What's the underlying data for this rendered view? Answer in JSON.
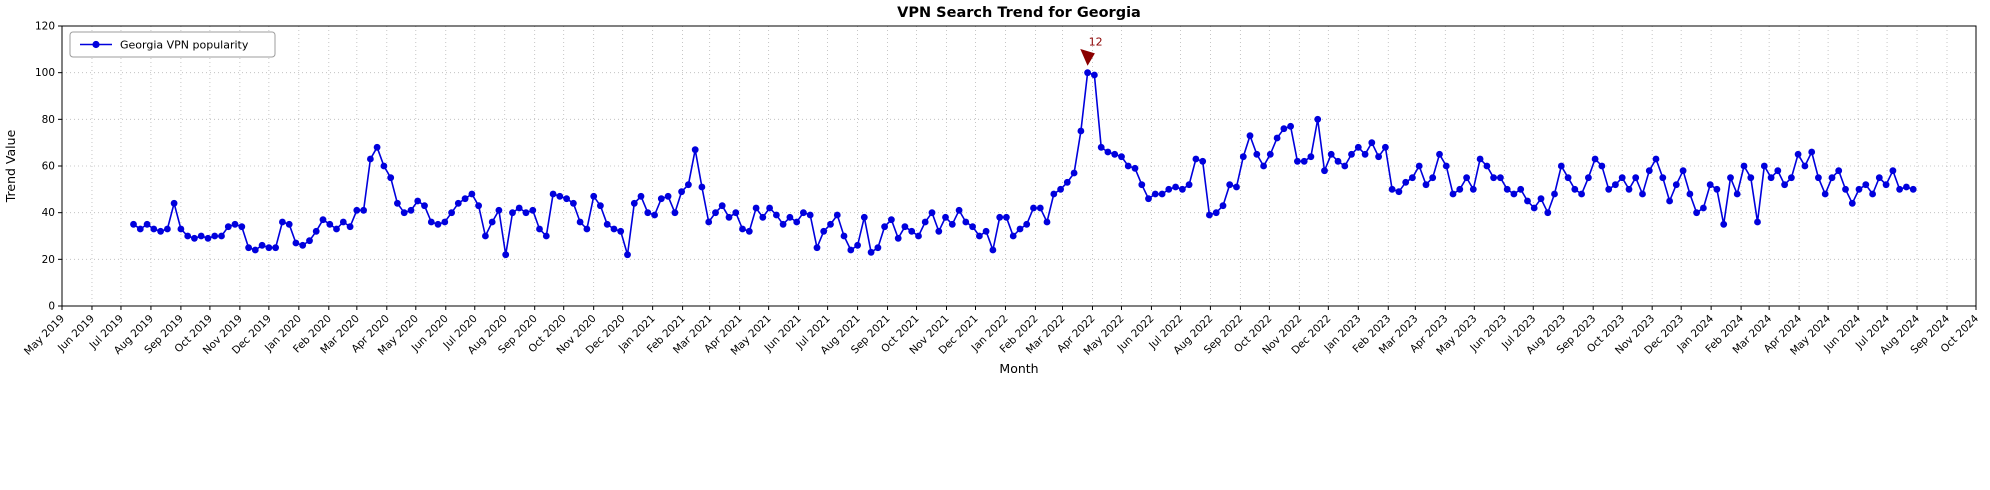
{
  "chart_data": {
    "type": "line",
    "title": "VPN Search Trend for Georgia",
    "xlabel": "Month",
    "ylabel": "Trend Value",
    "ylim": [
      0,
      120
    ],
    "yticks": [
      0,
      20,
      40,
      60,
      80,
      100,
      120
    ],
    "x_range": [
      "2019-05-01",
      "2024-10-01"
    ],
    "x_tick_labels": [
      "May 2019",
      "Jun 2019",
      "Jul 2019",
      "Aug 2019",
      "Sep 2019",
      "Oct 2019",
      "Nov 2019",
      "Dec 2019",
      "Jan 2020",
      "Feb 2020",
      "Mar 2020",
      "Apr 2020",
      "May 2020",
      "Jun 2020",
      "Jul 2020",
      "Aug 2020",
      "Sep 2020",
      "Oct 2020",
      "Nov 2020",
      "Dec 2020",
      "Jan 2021",
      "Feb 2021",
      "Mar 2021",
      "Apr 2021",
      "May 2021",
      "Jun 2021",
      "Jul 2021",
      "Aug 2021",
      "Sep 2021",
      "Oct 2021",
      "Nov 2021",
      "Dec 2021",
      "Jan 2022",
      "Feb 2022",
      "Mar 2022",
      "Apr 2022",
      "May 2022",
      "Jun 2022",
      "Jul 2022",
      "Aug 2022",
      "Sep 2022",
      "Oct 2022",
      "Nov 2022",
      "Dec 2022",
      "Jan 2023",
      "Feb 2023",
      "Mar 2023",
      "Apr 2023",
      "May 2023",
      "Jun 2023",
      "Jul 2023",
      "Aug 2023",
      "Sep 2023",
      "Oct 2023",
      "Nov 2023",
      "Dec 2023",
      "Jan 2024",
      "Feb 2024",
      "Mar 2024",
      "Apr 2024",
      "May 2024",
      "Jun 2024",
      "Jul 2024",
      "Aug 2024",
      "Sep 2024",
      "Oct 2024"
    ],
    "grid": true,
    "legend": {
      "label": "Georgia VPN popularity",
      "position": "upper left"
    },
    "annotation": {
      "text": "12",
      "color": "#8b0000",
      "attach": "max"
    },
    "series": [
      {
        "name": "Georgia VPN popularity",
        "color": "#0000dd",
        "marker": "circle",
        "x_start": "2019-07-14",
        "x_step_days": 7,
        "values": [
          35,
          33,
          35,
          33,
          32,
          33,
          44,
          33,
          30,
          29,
          30,
          29,
          30,
          30,
          34,
          35,
          34,
          25,
          24,
          26,
          25,
          25,
          36,
          35,
          27,
          26,
          28,
          32,
          37,
          35,
          33,
          36,
          34,
          41,
          41,
          63,
          68,
          60,
          55,
          44,
          40,
          41,
          45,
          43,
          36,
          35,
          36,
          40,
          44,
          46,
          48,
          43,
          30,
          36,
          41,
          22,
          40,
          42,
          40,
          41,
          33,
          30,
          48,
          47,
          46,
          44,
          36,
          33,
          47,
          43,
          35,
          33,
          32,
          22,
          44,
          47,
          40,
          39,
          46,
          47,
          40,
          49,
          52,
          67,
          51,
          36,
          40,
          43,
          38,
          40,
          33,
          32,
          42,
          38,
          42,
          39,
          35,
          38,
          36,
          40,
          39,
          25,
          32,
          35,
          39,
          30,
          24,
          26,
          38,
          23,
          25,
          34,
          37,
          29,
          34,
          32,
          30,
          36,
          40,
          32,
          38,
          35,
          41,
          36,
          34,
          30,
          32,
          24,
          38,
          38,
          30,
          33,
          35,
          42,
          42,
          36,
          48,
          50,
          53,
          57,
          75,
          100,
          99,
          68,
          66,
          65,
          64,
          60,
          59,
          52,
          46,
          48,
          48,
          50,
          51,
          50,
          52,
          63,
          62,
          39,
          40,
          43,
          52,
          51,
          64,
          73,
          65,
          60,
          65,
          72,
          76,
          77,
          62,
          62,
          64,
          80,
          58,
          65,
          62,
          60,
          65,
          68,
          65,
          70,
          64,
          68,
          50,
          49,
          53,
          55,
          60,
          52,
          55,
          65,
          60,
          48,
          50,
          55,
          50,
          63,
          60,
          55,
          55,
          50,
          48,
          50,
          45,
          42,
          46,
          40,
          48,
          60,
          55,
          50,
          48,
          55,
          63,
          60,
          50,
          52,
          55,
          50,
          55,
          48,
          58,
          63,
          55,
          45,
          52,
          58,
          48,
          40,
          42,
          52,
          50,
          35,
          55,
          48,
          60,
          55,
          36,
          60,
          55,
          58,
          52,
          55,
          65,
          60,
          66,
          55,
          48,
          55,
          58,
          50,
          44,
          50,
          52,
          48,
          55,
          52,
          58,
          50,
          51,
          50
        ]
      }
    ]
  }
}
